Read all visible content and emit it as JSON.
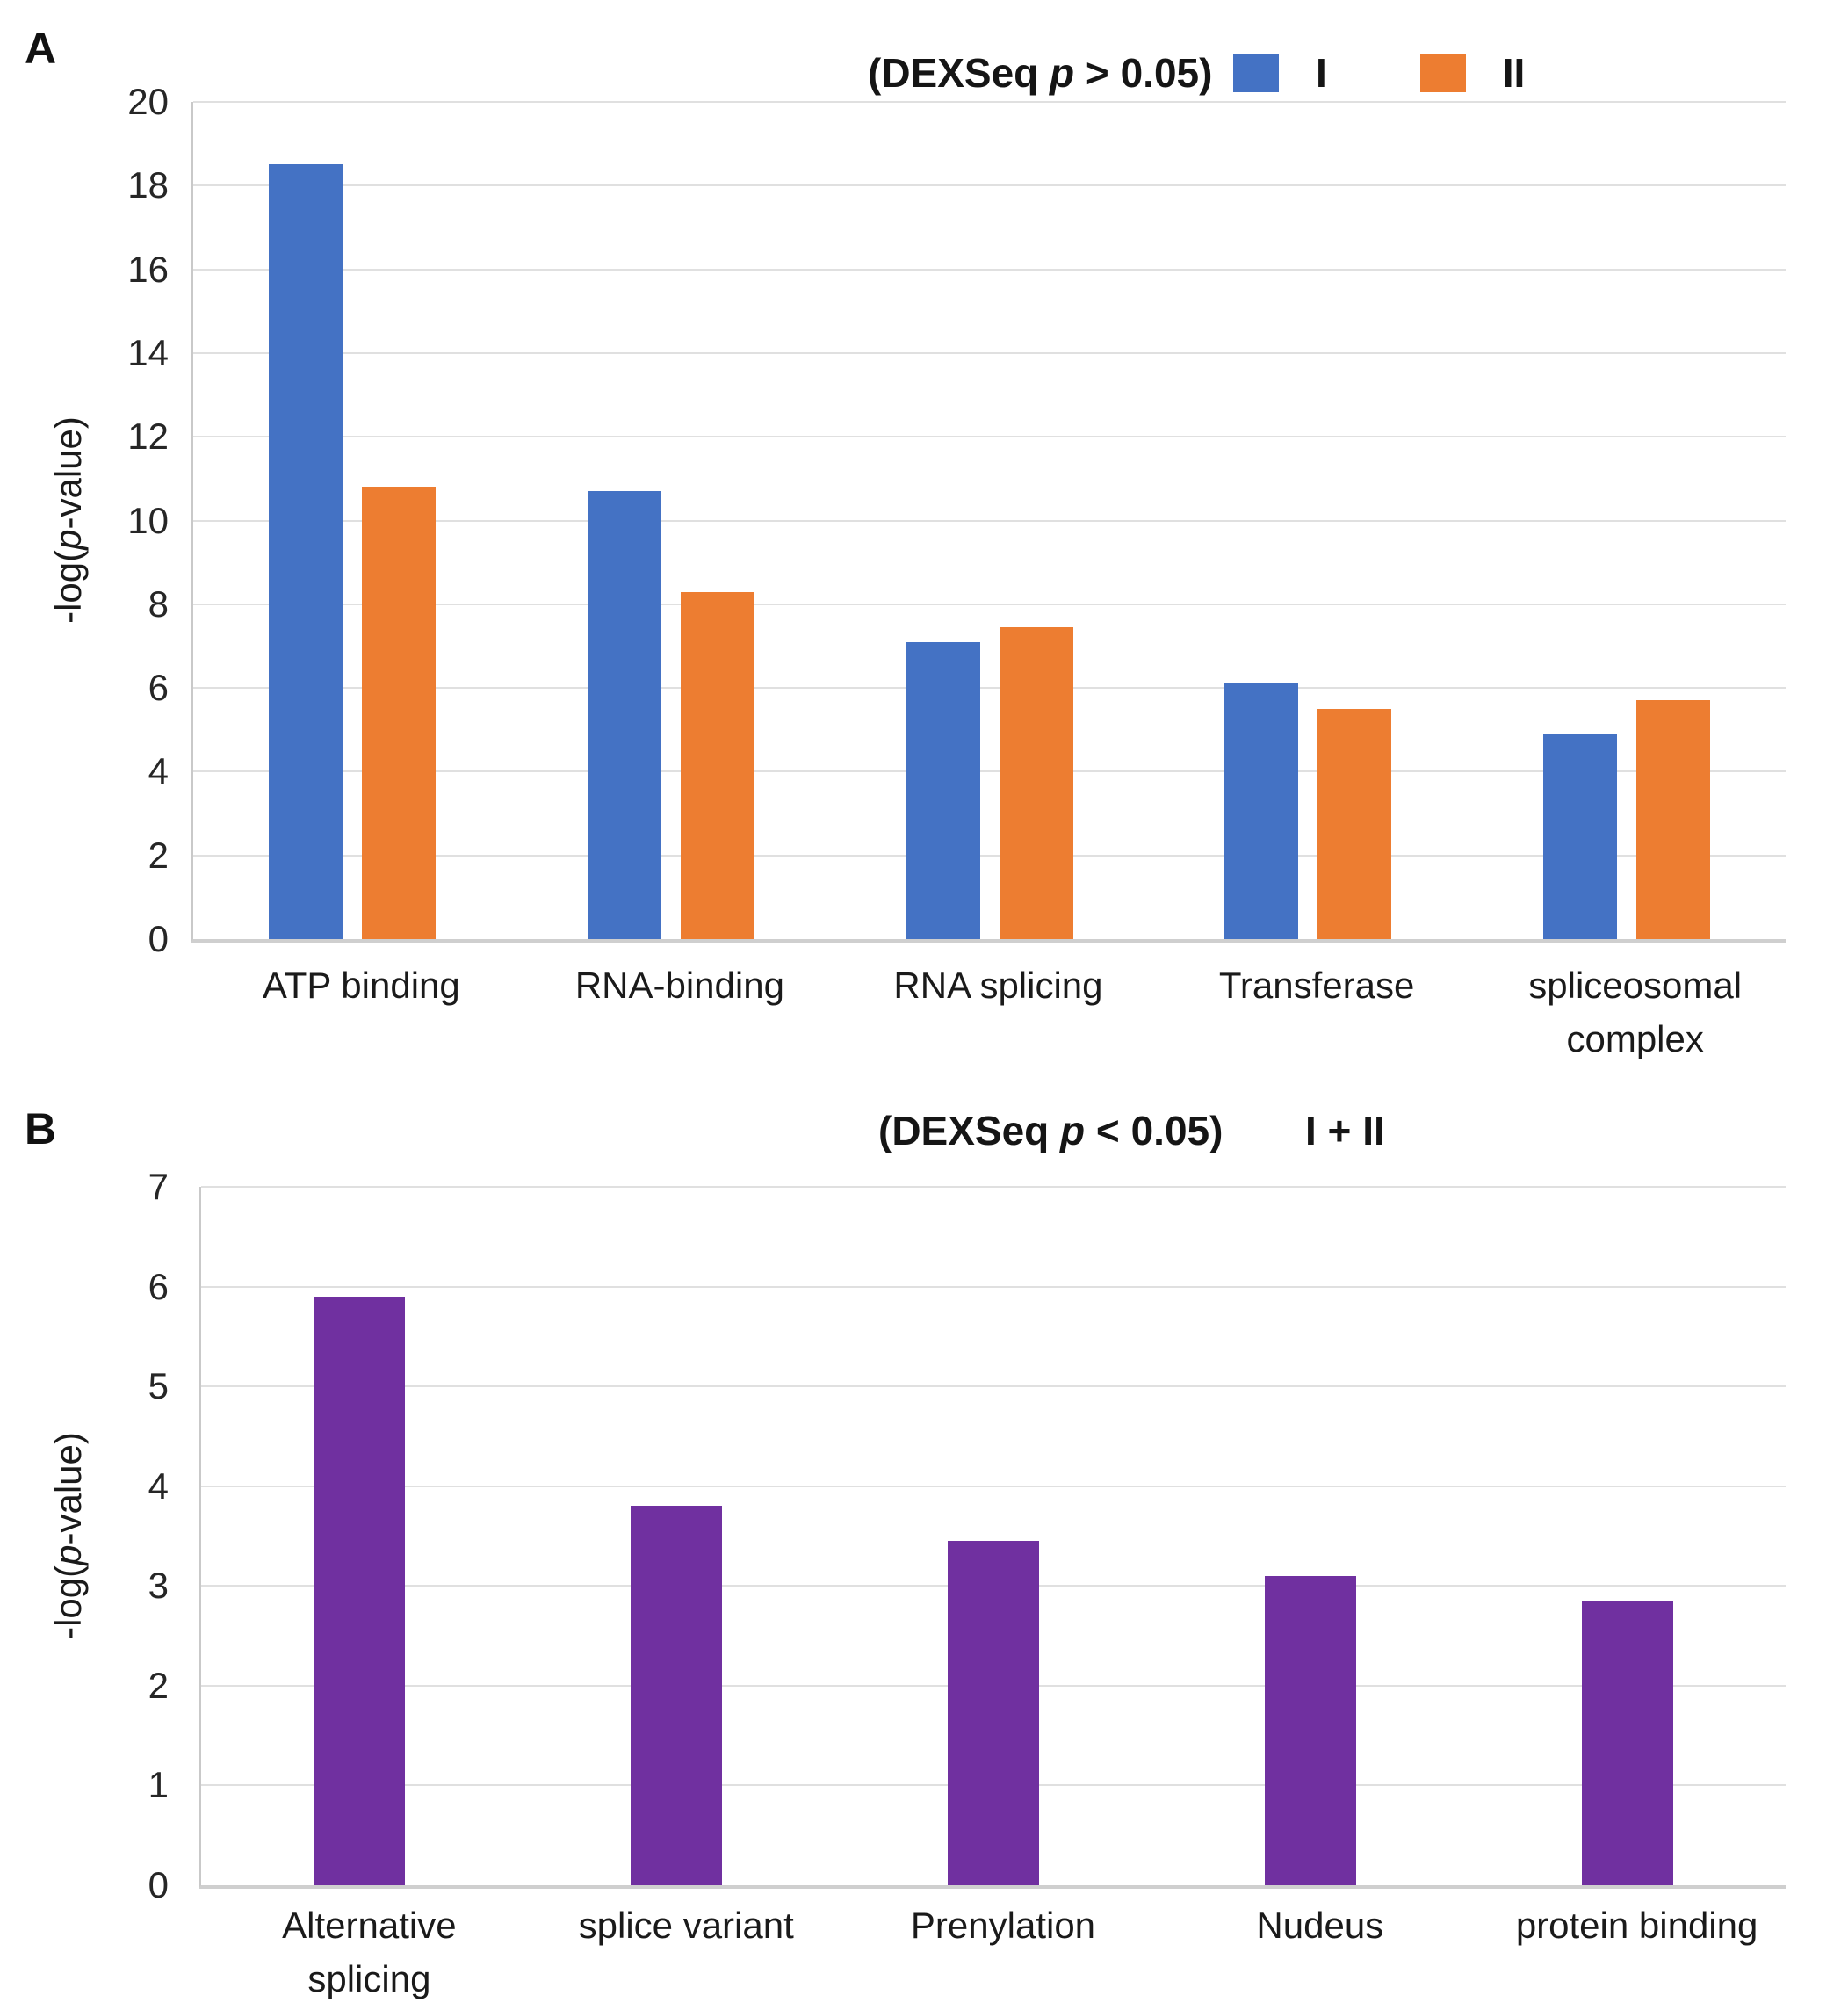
{
  "panel_a": {
    "label": "A",
    "title": {
      "pre": "(DEXSeq ",
      "italic": "p",
      "post": " > 0.05)",
      "full": "(DEXSeq p > 0.05)"
    },
    "ylabel": {
      "pre": "-log(",
      "italic": "p",
      "post": "-value)",
      "full": "-log(p-value)"
    },
    "legend": [
      {
        "label": "I",
        "color": "#4472C4"
      },
      {
        "label": "II",
        "color": "#ED7D31"
      }
    ]
  },
  "panel_b": {
    "label": "B",
    "title": {
      "pre": "(DEXSeq ",
      "italic": "p",
      "post": " < 0.05)",
      "full": "(DEXSeq p < 0.05)"
    },
    "ylabel": {
      "pre": "-log(",
      "italic": "p",
      "post": "-value)",
      "full": "-log(p-value)"
    },
    "legend_text": "I + II"
  },
  "chart_data": [
    {
      "panel": "A",
      "type": "bar",
      "title": "(DEXSeq p > 0.05)",
      "xlabel": "",
      "ylabel": "-log(p-value)",
      "ylim": [
        0,
        20
      ],
      "ytick_step": 2,
      "yticks": [
        0,
        2,
        4,
        6,
        8,
        10,
        12,
        14,
        16,
        18,
        20
      ],
      "grid": true,
      "legend_position": "top-right",
      "categories": [
        "ATP binding",
        "RNA-binding",
        "RNA splicing",
        "Transferase",
        "spliceosomal complex"
      ],
      "series": [
        {
          "name": "I",
          "color": "#4472C4",
          "values": [
            18.5,
            10.7,
            7.1,
            6.1,
            4.9
          ]
        },
        {
          "name": "II",
          "color": "#ED7D31",
          "values": [
            10.8,
            8.3,
            7.45,
            5.5,
            5.7
          ]
        }
      ]
    },
    {
      "panel": "B",
      "type": "bar",
      "title": "(DEXSeq p < 0.05)",
      "xlabel": "",
      "ylabel": "-log(p-value)",
      "ylim": [
        0,
        7
      ],
      "ytick_step": 1,
      "yticks": [
        0,
        1,
        2,
        3,
        4,
        5,
        6,
        7
      ],
      "grid": true,
      "legend_text": "I + II",
      "categories": [
        "Alternative splicing",
        "splice variant",
        "Prenylation",
        "Nudeus",
        "protein binding"
      ],
      "series": [
        {
          "name": "I + II",
          "color": "#7030A0",
          "values": [
            5.9,
            3.8,
            3.45,
            3.1,
            2.85
          ]
        }
      ]
    }
  ],
  "colors": {
    "series_I_blue": "#4472C4",
    "series_II_orange": "#ED7D31",
    "series_combined_purple": "#7030A0",
    "gridline": "#E0E0E0",
    "axis_line": "#C9C9C9",
    "text": "#1F1F1F",
    "background": "#FFFFFF"
  }
}
